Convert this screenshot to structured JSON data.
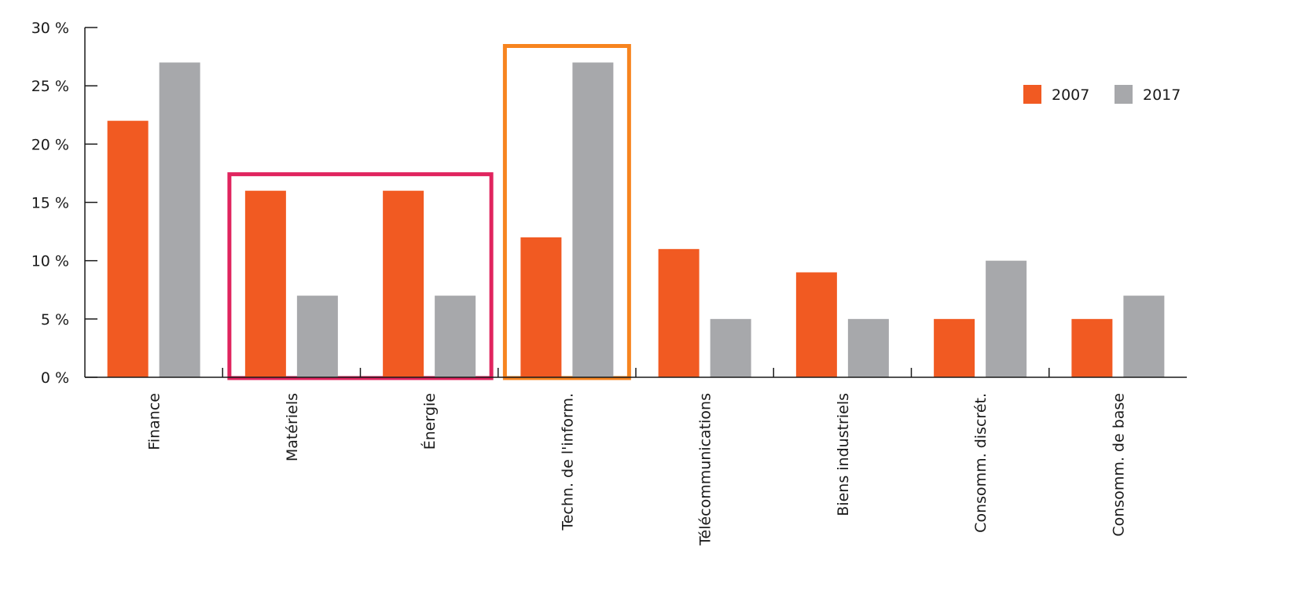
{
  "chart_data": {
    "type": "bar",
    "categories": [
      "Finance",
      "Matériels",
      "Énergie",
      "Techn. de l'inform.",
      "Télécommunications",
      "Biens industriels",
      "Consomm. discrét.",
      "Consomm. de base"
    ],
    "series": [
      {
        "name": "2007",
        "color": "#f15a22",
        "values": [
          22,
          16,
          16,
          12,
          11,
          9,
          5,
          5
        ]
      },
      {
        "name": "2017",
        "color": "#a7a8ab",
        "values": [
          27,
          7,
          7,
          27,
          5,
          5,
          10,
          7
        ]
      }
    ],
    "y_ticks": [
      "0 %",
      "5 %",
      "10 %",
      "15 %",
      "20 %",
      "25 %",
      "30 %"
    ],
    "ylim": [
      0,
      30
    ],
    "ytick_step": 5,
    "legend_position": "top-right",
    "highlights": [
      {
        "categories": [
          "Matériels",
          "Énergie"
        ],
        "color": "#e0245e"
      },
      {
        "categories": [
          "Techn. de l'inform."
        ],
        "color": "#f7841f"
      }
    ]
  }
}
